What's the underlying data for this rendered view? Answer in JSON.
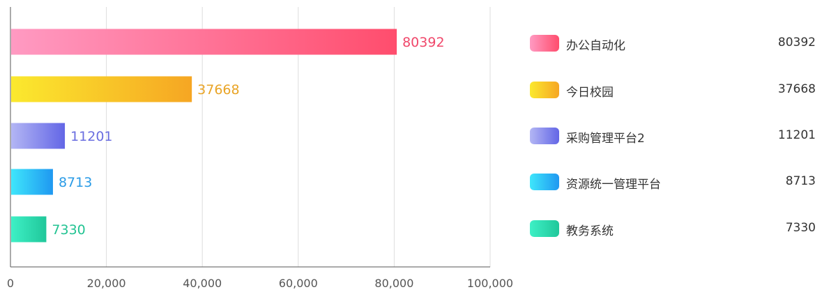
{
  "chart_data": {
    "type": "bar",
    "orientation": "horizontal",
    "categories": [
      "办公自动化",
      "今日校园",
      "采购管理平台2",
      "资源统一管理平台",
      "教务系统"
    ],
    "values": [
      80392,
      37668,
      11201,
      8713,
      7330
    ],
    "value_labels": [
      "80392",
      "37668",
      "11201",
      "8713",
      "7330"
    ],
    "xlim": [
      0,
      100000
    ],
    "x_ticks": [
      0,
      20000,
      40000,
      60000,
      80000,
      100000
    ],
    "x_tick_labels": [
      "0",
      "20,000",
      "40,000",
      "60,000",
      "80,000",
      "100,000"
    ],
    "grid": "vertical",
    "legend_position": "right",
    "colors": [
      {
        "start": "#ff9ac2",
        "end": "#ff4d6d",
        "label": "#f0476a"
      },
      {
        "start": "#fbe92e",
        "end": "#f6a623",
        "label": "#e9a426"
      },
      {
        "start": "#b3b6f4",
        "end": "#6366e6",
        "label": "#6a6ee0"
      },
      {
        "start": "#3fe6fb",
        "end": "#1f98f1",
        "label": "#2a9be6"
      },
      {
        "start": "#3ef0c6",
        "end": "#20c79a",
        "label": "#22c392"
      }
    ]
  }
}
